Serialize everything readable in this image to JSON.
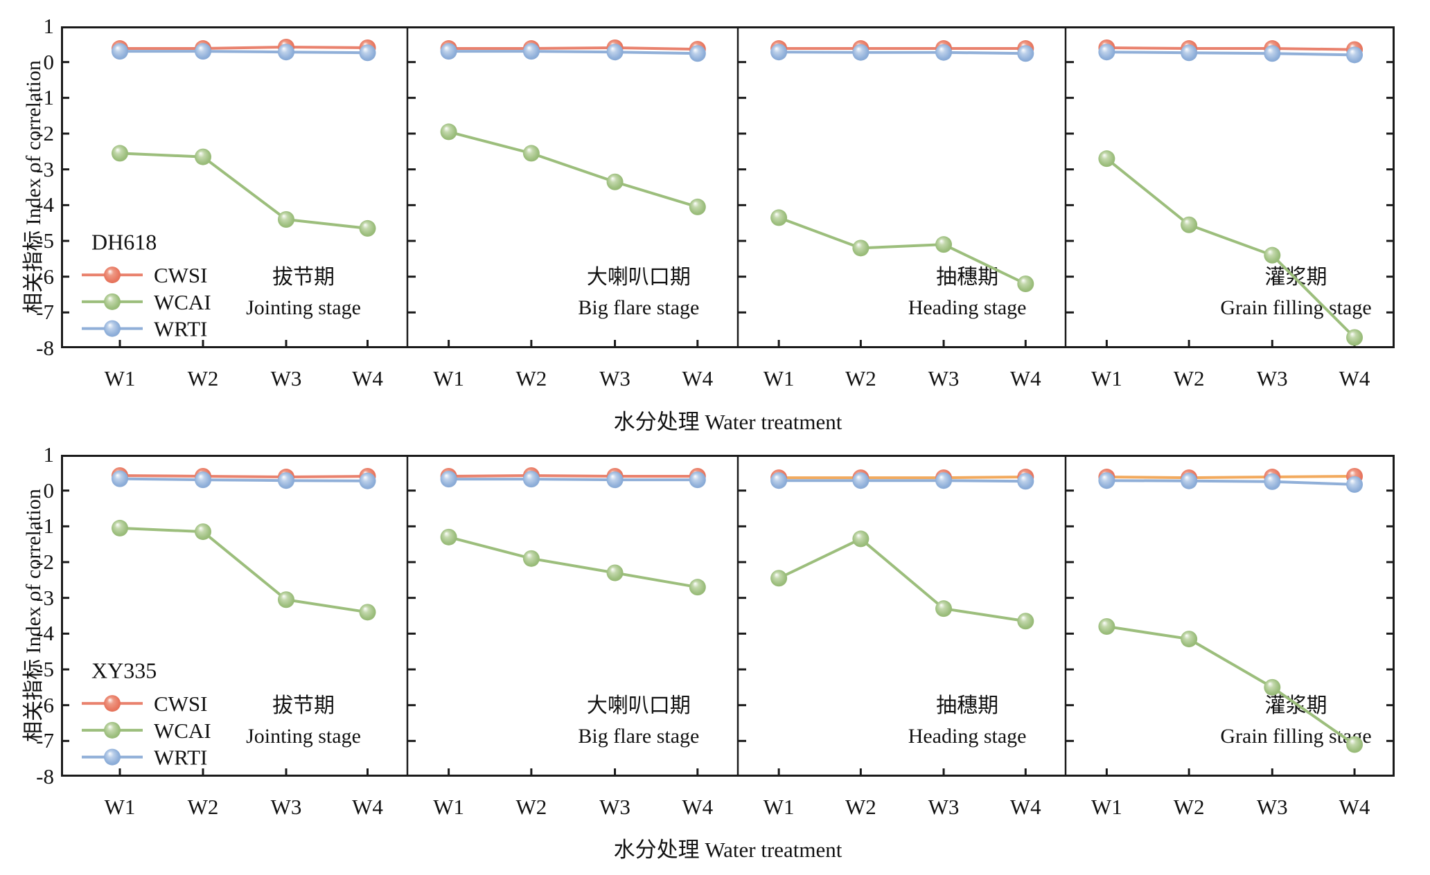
{
  "figure": {
    "y_axis_label": "相关指标 Index of correlation",
    "x_axis_label": "水分处理 Water treatment",
    "y_ticks": [
      1,
      0,
      -1,
      -2,
      -3,
      -4,
      -5,
      -6,
      -7,
      -8
    ],
    "x_labels": [
      "W1",
      "W2",
      "W3",
      "W4"
    ],
    "legend_series": [
      "CWSI",
      "WCAI",
      "WRTI"
    ],
    "colors": {
      "cwsi_line": "#E9826E",
      "cwsi_line_alt": "#F2AA5E",
      "wcai_line": "#9CBE7C",
      "wrti_line": "#90AFD8",
      "cwsi_ball": [
        "#FFFFFF",
        "#EE9A86",
        "#E87760",
        "#DE6A52"
      ],
      "wcai_ball": [
        "#FFFFFF",
        "#C3D8AC",
        "#9CBE7D",
        "#8FB26C"
      ],
      "wrti_ball": [
        "#FFFFFF",
        "#BCD0EA",
        "#8FAFD9",
        "#7FA2D0"
      ],
      "axis": "#1a1a1a"
    }
  },
  "chart_data": {
    "type": "line",
    "x_categories": [
      "W1",
      "W2",
      "W3",
      "W4"
    ],
    "ylim": [
      -8,
      1
    ],
    "ylabel": "相关指标 Index of correlation",
    "xlabel": "水分处理 Water treatment",
    "rows": [
      {
        "variety": "DH618",
        "panels": [
          {
            "stage_zh": "拔节期",
            "stage_en": "Jointing stage",
            "cwsi_orange": false,
            "series": {
              "CWSI": [
                0.38,
                0.38,
                0.42,
                0.4
              ],
              "WCAI": [
                -2.55,
                -2.65,
                -4.4,
                -4.65
              ],
              "WRTI": [
                0.3,
                0.3,
                0.28,
                0.26
              ]
            }
          },
          {
            "stage_zh": "大喇叭口期",
            "stage_en": "Big flare stage",
            "cwsi_orange": false,
            "series": {
              "CWSI": [
                0.38,
                0.38,
                0.4,
                0.36
              ],
              "WCAI": [
                -1.95,
                -2.55,
                -3.35,
                -4.05
              ],
              "WRTI": [
                0.3,
                0.3,
                0.28,
                0.24
              ]
            }
          },
          {
            "stage_zh": "抽穗期",
            "stage_en": "Heading stage",
            "cwsi_orange": false,
            "series": {
              "CWSI": [
                0.38,
                0.38,
                0.38,
                0.38
              ],
              "WCAI": [
                -4.35,
                -5.2,
                -5.1,
                -6.2
              ],
              "WRTI": [
                0.28,
                0.27,
                0.27,
                0.24
              ]
            }
          },
          {
            "stage_zh": "灌浆期",
            "stage_en": "Grain filling stage",
            "cwsi_orange": false,
            "series": {
              "CWSI": [
                0.4,
                0.38,
                0.38,
                0.35
              ],
              "WCAI": [
                -2.7,
                -4.55,
                -5.4,
                -7.7
              ],
              "WRTI": [
                0.28,
                0.26,
                0.24,
                0.2
              ]
            }
          }
        ]
      },
      {
        "variety": "XY335",
        "panels": [
          {
            "stage_zh": "拔节期",
            "stage_en": "Jointing stage",
            "cwsi_orange": false,
            "series": {
              "CWSI": [
                0.42,
                0.4,
                0.38,
                0.4
              ],
              "WCAI": [
                -1.05,
                -1.15,
                -3.05,
                -3.4
              ],
              "WRTI": [
                0.33,
                0.3,
                0.28,
                0.27
              ]
            }
          },
          {
            "stage_zh": "大喇叭口期",
            "stage_en": "Big flare stage",
            "cwsi_orange": false,
            "series": {
              "CWSI": [
                0.4,
                0.42,
                0.4,
                0.4
              ],
              "WCAI": [
                -1.3,
                -1.9,
                -2.3,
                -2.7
              ],
              "WRTI": [
                0.32,
                0.32,
                0.3,
                0.3
              ]
            }
          },
          {
            "stage_zh": "抽穗期",
            "stage_en": "Heading stage",
            "cwsi_orange": true,
            "series": {
              "CWSI": [
                0.36,
                0.36,
                0.36,
                0.38
              ],
              "WCAI": [
                -2.45,
                -1.35,
                -3.3,
                -3.65
              ],
              "WRTI": [
                0.28,
                0.28,
                0.28,
                0.26
              ]
            }
          },
          {
            "stage_zh": "灌浆期",
            "stage_en": "Grain filling stage",
            "cwsi_orange": true,
            "series": {
              "CWSI": [
                0.38,
                0.36,
                0.38,
                0.4
              ],
              "WCAI": [
                -3.8,
                -4.15,
                -5.5,
                -7.1
              ],
              "WRTI": [
                0.28,
                0.27,
                0.25,
                0.17
              ]
            }
          }
        ]
      }
    ]
  }
}
